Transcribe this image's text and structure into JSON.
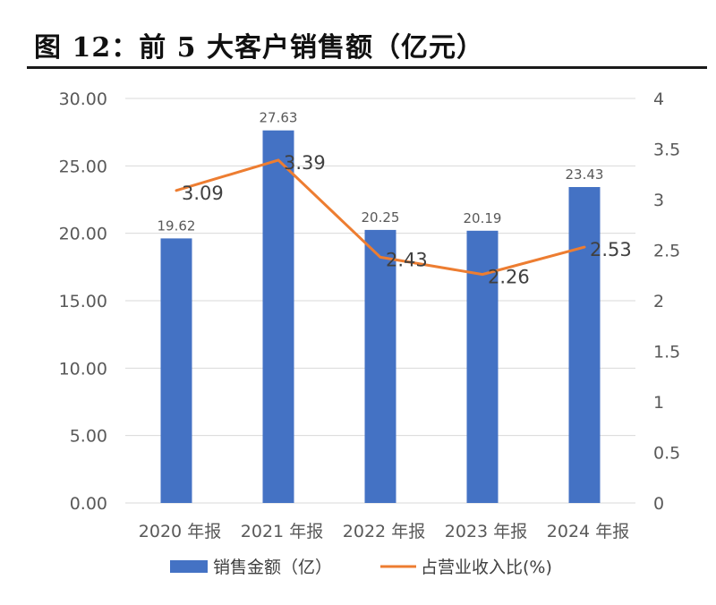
{
  "title": "图 12：前 5 大客户销售额（亿元）",
  "chart_data": {
    "type": "bar+line",
    "categories": [
      "2020 年报",
      "2021 年报",
      "2022 年报",
      "2023 年报",
      "2024 年报"
    ],
    "series": [
      {
        "name": "销售金额（亿）",
        "type": "bar",
        "axis": "left",
        "values": [
          19.62,
          27.63,
          20.25,
          20.19,
          23.43
        ],
        "labels": [
          "19.62",
          "27.63",
          "20.25",
          "20.19",
          "23.43"
        ],
        "color": "#4472C4"
      },
      {
        "name": "占营业收入比(%)",
        "type": "line",
        "axis": "right",
        "values": [
          3.09,
          3.39,
          2.43,
          2.26,
          2.53
        ],
        "labels": [
          "3.09",
          "3.39",
          "2.43",
          "2.26",
          "2.53"
        ],
        "color": "#ED7D31"
      }
    ],
    "left_axis": {
      "min": 0,
      "max": 30,
      "ticks": [
        0,
        5,
        10,
        15,
        20,
        25,
        30
      ],
      "tick_labels": [
        "0.00",
        "5.00",
        "10.00",
        "15.00",
        "20.00",
        "25.00",
        "30.00"
      ]
    },
    "right_axis": {
      "min": 0,
      "max": 4,
      "ticks": [
        0,
        0.5,
        1,
        1.5,
        2,
        2.5,
        3,
        3.5,
        4
      ],
      "tick_labels": [
        "0",
        "0.5",
        "1",
        "1.5",
        "2",
        "2.5",
        "3",
        "3.5",
        "4"
      ]
    },
    "gridlines": true,
    "legend_position": "bottom"
  }
}
